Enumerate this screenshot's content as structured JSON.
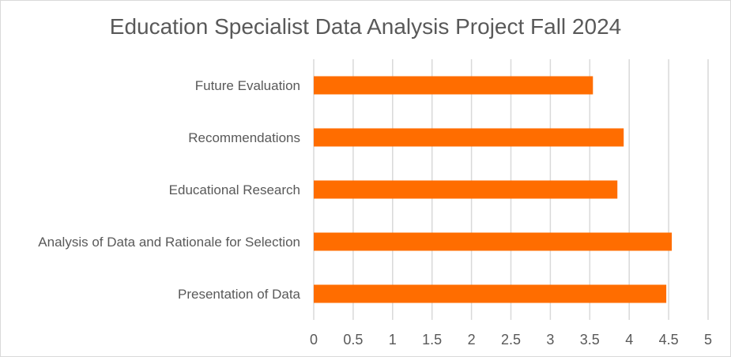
{
  "chart_data": {
    "type": "bar",
    "orientation": "horizontal",
    "title": "Education Specialist Data Analysis Project Fall 2024",
    "categories": [
      "Future Evaluation",
      "Recommendations",
      "Educational Research",
      "Analysis of Data and Rationale for Selection",
      "Presentation of Data"
    ],
    "values": [
      3.54,
      3.93,
      3.85,
      4.54,
      4.47
    ],
    "xlim": [
      0,
      5
    ],
    "xticks": [
      "0",
      "0.5",
      "1",
      "1.5",
      "2",
      "2.5",
      "3",
      "3.5",
      "4",
      "4.5",
      "5"
    ],
    "grid": true,
    "legend": "none",
    "bar_color": "#ff6d00",
    "xlabel": "",
    "ylabel": ""
  }
}
